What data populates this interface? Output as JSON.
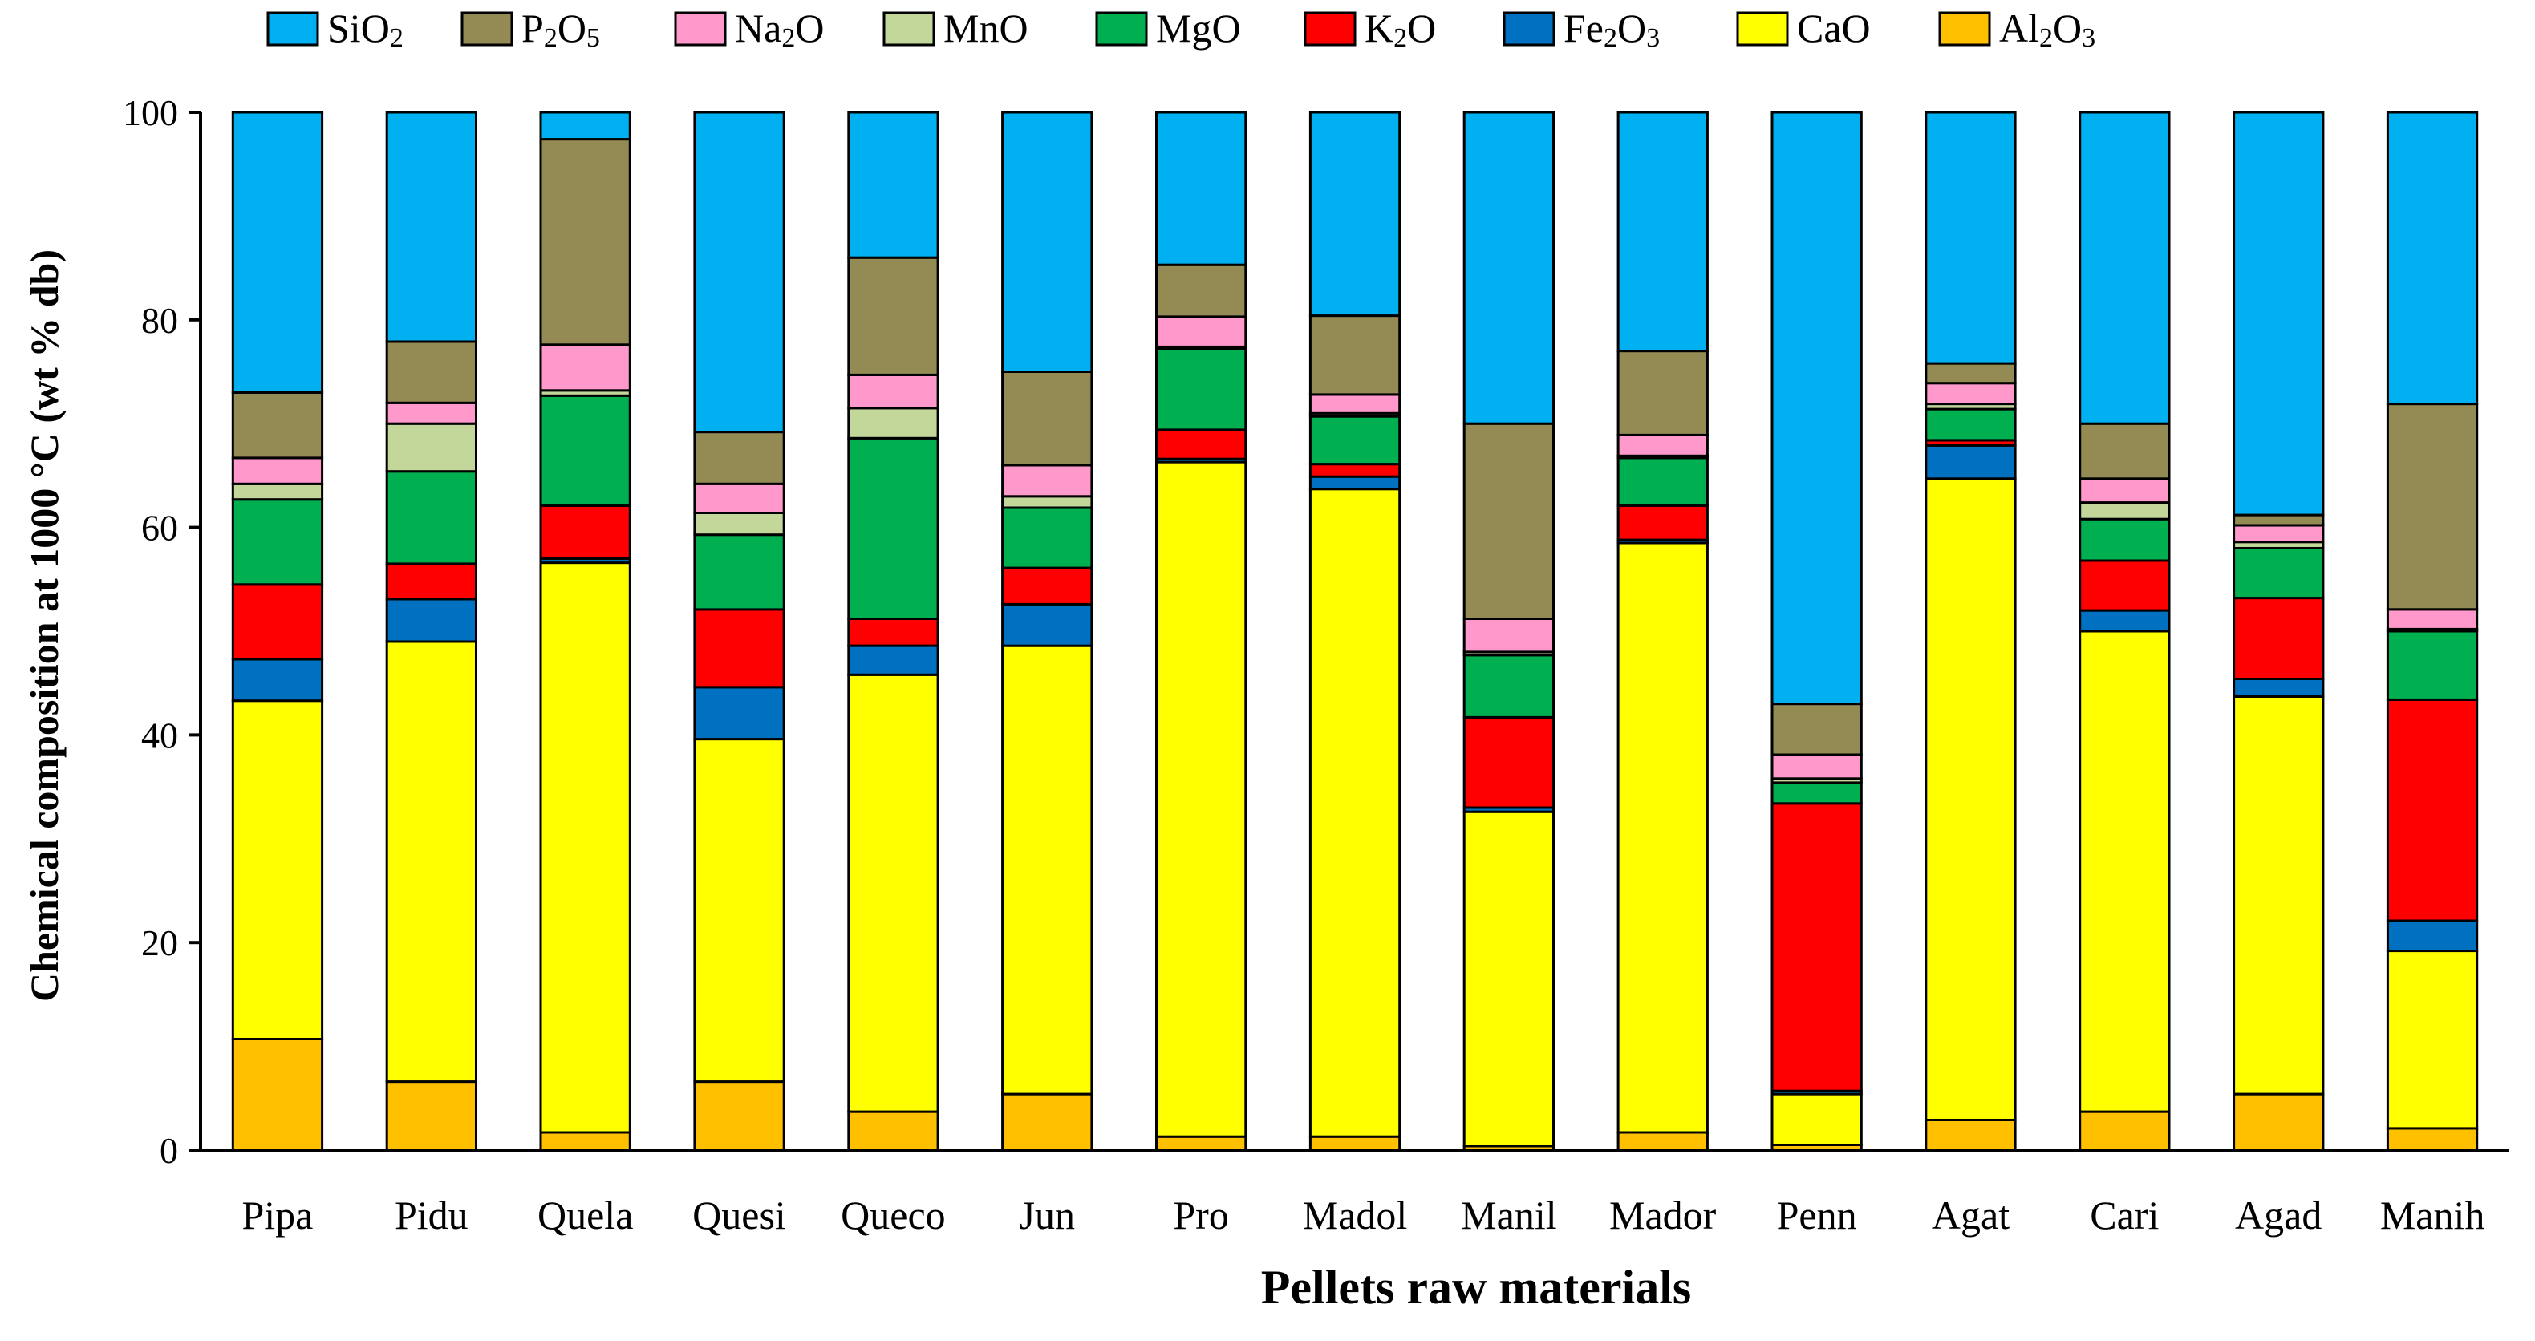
{
  "chart_data": {
    "type": "bar",
    "stacked": true,
    "xlabel": "Pellets raw materials",
    "ylabel": "Chemical composition at 1000 °C (wt % db)",
    "ylim": [
      0,
      100
    ],
    "yticks": [
      0,
      20,
      40,
      60,
      80,
      100
    ],
    "grid": false,
    "legend_position": "top",
    "categories": [
      "Pipa",
      "Pidu",
      "Quela",
      "Quesi",
      "Queco",
      "Jun",
      "Pro",
      "Madol",
      "Manil",
      "Mador",
      "Penn",
      "Agat",
      "Cari",
      "Agad",
      "Manih"
    ],
    "legend_order": [
      "SiO2",
      "P2O5",
      "Na2O",
      "MnO",
      "MgO",
      "K2O",
      "Fe2O3",
      "CaO",
      "Al2O3"
    ],
    "series": [
      {
        "name": "Al2O3",
        "label": [
          "Al",
          "2",
          "O",
          "3"
        ],
        "color": "#FFC000",
        "values": [
          10.7,
          6.6,
          1.7,
          6.6,
          3.7,
          5.4,
          1.3,
          1.3,
          0.4,
          1.7,
          0.5,
          2.9,
          3.7,
          5.4,
          2.1
        ]
      },
      {
        "name": "CaO",
        "label": [
          "CaO"
        ],
        "color": "#FFFF00",
        "values": [
          32.6,
          42.4,
          54.9,
          33.0,
          42.1,
          43.2,
          65.0,
          62.4,
          32.2,
          56.8,
          4.9,
          61.8,
          46.3,
          38.3,
          17.1
        ]
      },
      {
        "name": "Fe2O3",
        "label": [
          "Fe",
          "2",
          "O",
          "3"
        ],
        "color": "#0070C0",
        "values": [
          4.0,
          4.1,
          0.4,
          5.0,
          2.8,
          4.0,
          0.3,
          1.2,
          0.4,
          0.3,
          0.3,
          3.2,
          2.0,
          1.7,
          2.9
        ]
      },
      {
        "name": "K2O",
        "label": [
          "K",
          "2",
          "O"
        ],
        "color": "#FF0000",
        "values": [
          7.2,
          3.4,
          5.1,
          7.5,
          2.6,
          3.5,
          2.8,
          1.2,
          8.7,
          3.3,
          27.7,
          0.5,
          4.8,
          7.8,
          21.3
        ]
      },
      {
        "name": "MgO",
        "label": [
          "MgO"
        ],
        "color": "#00B050",
        "values": [
          8.2,
          8.9,
          10.6,
          7.2,
          17.4,
          5.8,
          7.8,
          4.6,
          6.0,
          4.6,
          2.0,
          3.0,
          4.0,
          4.8,
          6.6
        ]
      },
      {
        "name": "MnO",
        "label": [
          "MnO"
        ],
        "color": "#C4D79B",
        "values": [
          1.5,
          4.6,
          0.5,
          2.1,
          2.9,
          1.1,
          0.2,
          0.3,
          0.3,
          0.2,
          0.4,
          0.5,
          1.6,
          0.6,
          0.2
        ]
      },
      {
        "name": "Na2O",
        "label": [
          "Na",
          "2",
          "O"
        ],
        "color": "#FF99CC",
        "values": [
          2.5,
          2.0,
          4.4,
          2.8,
          3.2,
          3.0,
          2.9,
          1.8,
          3.2,
          2.0,
          2.3,
          2.0,
          2.3,
          1.6,
          1.9
        ]
      },
      {
        "name": "P2O5",
        "label": [
          "P",
          "2",
          "O",
          "5"
        ],
        "color": "#948A54",
        "values": [
          6.3,
          5.9,
          19.8,
          5.0,
          11.3,
          9.0,
          5.0,
          7.6,
          18.8,
          8.1,
          4.9,
          1.9,
          5.3,
          1.0,
          19.8
        ]
      },
      {
        "name": "SiO2",
        "label": [
          "SiO",
          "2"
        ],
        "color": "#00B0F0",
        "values": [
          27.0,
          22.1,
          2.6,
          30.8,
          14.0,
          25.0,
          14.7,
          19.6,
          30.0,
          23.0,
          57.0,
          24.2,
          30.0,
          38.8,
          28.1
        ]
      }
    ]
  }
}
